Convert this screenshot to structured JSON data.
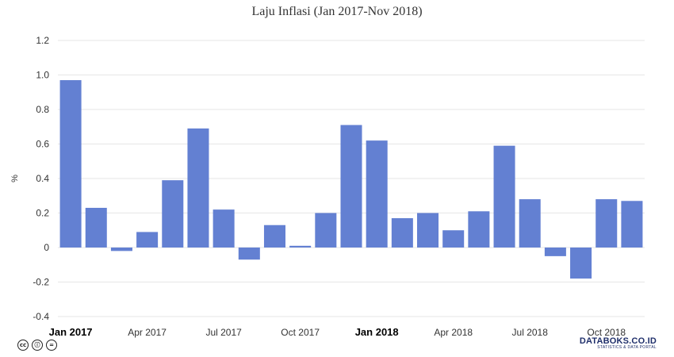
{
  "chart_data": {
    "type": "bar",
    "title": "Laju Inflasi (Jan 2017-Nov 2018)",
    "ylabel": "%",
    "ylim": [
      -0.4,
      1.2
    ],
    "yticks": [
      "-0.4",
      "-0.2",
      "0",
      "0.2",
      "0.4",
      "0.6",
      "0.8",
      "1.0",
      "1.2"
    ],
    "categories": [
      "Jan 2017",
      "Feb 2017",
      "Mar 2017",
      "Apr 2017",
      "May 2017",
      "Jun 2017",
      "Jul 2017",
      "Aug 2017",
      "Sep 2017",
      "Oct 2017",
      "Nov 2017",
      "Dec 2017",
      "Jan 2018",
      "Feb 2018",
      "Mar 2018",
      "Apr 2018",
      "May 2018",
      "Jun 2018",
      "Jul 2018",
      "Aug 2018",
      "Sep 2018",
      "Oct 2018",
      "Nov 2018"
    ],
    "values": [
      0.97,
      0.23,
      -0.02,
      0.09,
      0.39,
      0.69,
      0.22,
      -0.07,
      0.13,
      0.01,
      0.2,
      0.71,
      0.62,
      0.17,
      0.2,
      0.1,
      0.21,
      0.59,
      0.28,
      -0.05,
      -0.18,
      0.28,
      0.27
    ],
    "xticks": [
      {
        "index": 0,
        "label": "Jan 2017",
        "bold": true
      },
      {
        "index": 3,
        "label": "Apr 2017",
        "bold": false
      },
      {
        "index": 6,
        "label": "Jul 2017",
        "bold": false
      },
      {
        "index": 9,
        "label": "Oct 2017",
        "bold": false
      },
      {
        "index": 12,
        "label": "Jan 2018",
        "bold": true
      },
      {
        "index": 15,
        "label": "Apr 2018",
        "bold": false
      },
      {
        "index": 18,
        "label": "Jul 2018",
        "bold": false
      },
      {
        "index": 21,
        "label": "Oct 2018",
        "bold": false
      }
    ],
    "bar_color": "#6380d2",
    "grid": true
  },
  "footer": {
    "license_icons": [
      "cc-icon",
      "by-icon",
      "equals-icon"
    ],
    "license_glyphs": [
      "cc",
      "ⓘ",
      "="
    ],
    "brand_name": "DATABOKS.CO.ID",
    "brand_tagline": "STATISTICS & DATA PORTAL"
  }
}
